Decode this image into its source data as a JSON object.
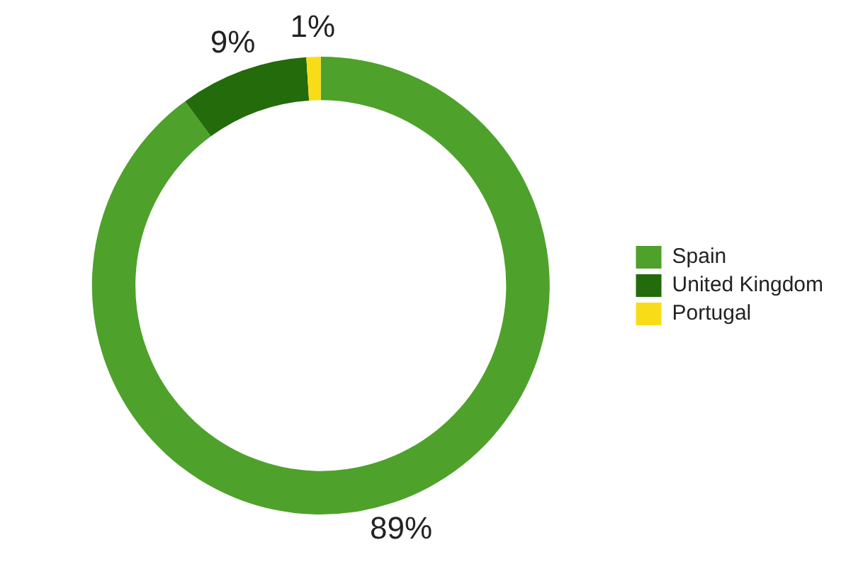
{
  "chart_data": {
    "type": "donut",
    "categories": [
      "Spain",
      "United Kingdom",
      "Portugal"
    ],
    "values": [
      89,
      9,
      1
    ],
    "colors": [
      "#4ea12a",
      "#236b0b",
      "#f9dc18"
    ],
    "value_labels": [
      "89%",
      "9%",
      "1%"
    ],
    "legend": "right"
  }
}
